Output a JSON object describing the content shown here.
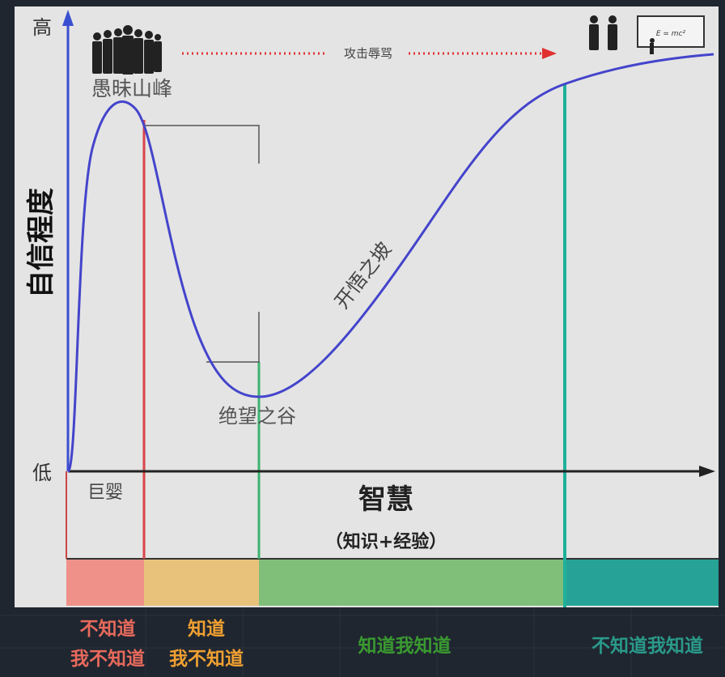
{
  "axes": {
    "y_high": "高",
    "y_low": "低",
    "y_title": "自信程度",
    "x_title": "智慧",
    "x_subtitle": "（知识+经验）"
  },
  "stages": {
    "peak": "愚昧山峰",
    "valley": "绝望之谷",
    "slope": "开悟之坡",
    "infant": "巨婴",
    "attack": "攻击辱骂",
    "blackboard": "E = mc²"
  },
  "bands": [
    {
      "line1": "不知道",
      "line2": "我不知道",
      "color": "#ef9188",
      "text_color": "#e86a5c"
    },
    {
      "line1": "知道",
      "line2": "我不知道",
      "color": "#e8c27a",
      "text_color": "#f0a032"
    },
    {
      "line1": "知道我知道",
      "color": "#80bf7a",
      "text_color": "#3a9a30"
    },
    {
      "line1": "不知道我知道",
      "color": "#26a396",
      "text_color": "#2a9a8a"
    }
  ],
  "colors": {
    "curve": "#4444cc",
    "axis_y": "#3a4fd0",
    "red_line": "#d9434a",
    "green_line": "#3cb371",
    "teal_line": "#20b09a"
  }
}
